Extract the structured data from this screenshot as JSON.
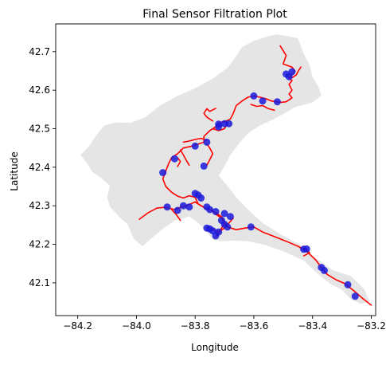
{
  "chart_data": {
    "type": "scatter",
    "title": "Final Sensor Filtration Plot",
    "xlabel": "Longitude",
    "ylabel": "Latitude",
    "xlim": [
      -84.275,
      -83.185
    ],
    "ylim": [
      42.015,
      42.772
    ],
    "xticks": [
      -84.2,
      -84.0,
      -83.8,
      -83.6,
      -83.4,
      -83.2
    ],
    "xtick_labels": [
      "−84.2",
      "−84.0",
      "−83.8",
      "−83.6",
      "−83.4",
      "−83.2"
    ],
    "yticks": [
      42.1,
      42.2,
      42.3,
      42.4,
      42.5,
      42.6,
      42.7
    ],
    "ytick_labels": [
      "42.1",
      "42.2",
      "42.3",
      "42.4",
      "42.5",
      "42.6",
      "42.7"
    ],
    "grid": false,
    "colors": {
      "basin": "#e5e5e5",
      "river": "#ff0000",
      "sensor": "#1a1adc"
    },
    "basin_outline": [
      [
        -83.52,
        42.745
      ],
      [
        -83.45,
        42.735
      ],
      [
        -83.43,
        42.695
      ],
      [
        -83.41,
        42.665
      ],
      [
        -83.4,
        42.635
      ],
      [
        -83.38,
        42.608
      ],
      [
        -83.37,
        42.586
      ],
      [
        -83.4,
        42.568
      ],
      [
        -83.46,
        42.556
      ],
      [
        -83.5,
        42.538
      ],
      [
        -83.54,
        42.522
      ],
      [
        -83.58,
        42.508
      ],
      [
        -83.62,
        42.488
      ],
      [
        -83.65,
        42.462
      ],
      [
        -83.68,
        42.432
      ],
      [
        -83.7,
        42.402
      ],
      [
        -83.72,
        42.378
      ],
      [
        -83.69,
        42.352
      ],
      [
        -83.66,
        42.322
      ],
      [
        -83.62,
        42.29
      ],
      [
        -83.57,
        42.255
      ],
      [
        -83.5,
        42.222
      ],
      [
        -83.44,
        42.198
      ],
      [
        -83.39,
        42.165
      ],
      [
        -83.33,
        42.132
      ],
      [
        -83.27,
        42.118
      ],
      [
        -83.225,
        42.085
      ],
      [
        -83.205,
        42.052
      ],
      [
        -83.235,
        42.045
      ],
      [
        -83.27,
        42.058
      ],
      [
        -83.3,
        42.082
      ],
      [
        -83.34,
        42.098
      ],
      [
        -83.38,
        42.122
      ],
      [
        -83.43,
        42.158
      ],
      [
        -83.5,
        42.182
      ],
      [
        -83.56,
        42.198
      ],
      [
        -83.62,
        42.208
      ],
      [
        -83.67,
        42.21
      ],
      [
        -83.71,
        42.208
      ],
      [
        -83.74,
        42.212
      ],
      [
        -83.76,
        42.232
      ],
      [
        -83.79,
        42.256
      ],
      [
        -83.82,
        42.272
      ],
      [
        -83.87,
        42.262
      ],
      [
        -83.91,
        42.24
      ],
      [
        -83.95,
        42.215
      ],
      [
        -83.98,
        42.195
      ],
      [
        -84.01,
        42.215
      ],
      [
        -84.03,
        42.252
      ],
      [
        -84.06,
        42.272
      ],
      [
        -84.09,
        42.298
      ],
      [
        -84.1,
        42.322
      ],
      [
        -84.09,
        42.352
      ],
      [
        -84.12,
        42.372
      ],
      [
        -84.15,
        42.388
      ],
      [
        -84.17,
        42.412
      ],
      [
        -84.19,
        42.432
      ],
      [
        -84.16,
        42.456
      ],
      [
        -84.14,
        42.48
      ],
      [
        -84.11,
        42.508
      ],
      [
        -84.07,
        42.516
      ],
      [
        -84.02,
        42.515
      ],
      [
        -83.97,
        42.53
      ],
      [
        -83.92,
        42.56
      ],
      [
        -83.86,
        42.585
      ],
      [
        -83.8,
        42.605
      ],
      [
        -83.74,
        42.63
      ],
      [
        -83.69,
        42.658
      ],
      [
        -83.66,
        42.688
      ],
      [
        -83.64,
        42.712
      ],
      [
        -83.6,
        42.728
      ],
      [
        -83.56,
        42.738
      ]
    ],
    "rivers": [
      [
        [
          -83.51,
          42.715
        ],
        [
          -83.49,
          42.69
        ],
        [
          -83.5,
          42.668
        ],
        [
          -83.47,
          42.66
        ],
        [
          -83.46,
          42.65
        ],
        [
          -83.47,
          42.64
        ],
        [
          -83.48,
          42.632
        ],
        [
          -83.47,
          42.625
        ],
        [
          -83.48,
          42.615
        ],
        [
          -83.47,
          42.6
        ],
        [
          -83.48,
          42.59
        ],
        [
          -83.47,
          42.58
        ],
        [
          -83.49,
          42.57
        ],
        [
          -83.51,
          42.568
        ],
        [
          -83.54,
          42.572
        ],
        [
          -83.56,
          42.578
        ],
        [
          -83.58,
          42.582
        ],
        [
          -83.6,
          42.585
        ],
        [
          -83.62,
          42.582
        ],
        [
          -83.64,
          42.572
        ],
        [
          -83.66,
          42.56
        ],
        [
          -83.67,
          42.54
        ],
        [
          -83.68,
          42.525
        ],
        [
          -83.7,
          42.518
        ],
        [
          -83.72,
          42.515
        ],
        [
          -83.73,
          42.505
        ],
        [
          -83.75,
          42.495
        ],
        [
          -83.77,
          42.48
        ],
        [
          -83.77,
          42.465
        ],
        [
          -83.79,
          42.46
        ],
        [
          -83.81,
          42.455
        ],
        [
          -83.84,
          42.45
        ],
        [
          -83.86,
          42.435
        ],
        [
          -83.88,
          42.425
        ],
        [
          -83.89,
          42.41
        ],
        [
          -83.9,
          42.39
        ],
        [
          -83.91,
          42.37
        ],
        [
          -83.9,
          42.35
        ],
        [
          -83.88,
          42.335
        ],
        [
          -83.86,
          42.325
        ],
        [
          -83.84,
          42.32
        ],
        [
          -83.82,
          42.326
        ],
        [
          -83.8,
          42.322
        ],
        [
          -83.79,
          42.305
        ],
        [
          -83.77,
          42.296
        ],
        [
          -83.75,
          42.29
        ],
        [
          -83.73,
          42.282
        ],
        [
          -83.71,
          42.272
        ],
        [
          -83.7,
          42.258
        ],
        [
          -83.69,
          42.245
        ],
        [
          -83.66,
          42.238
        ],
        [
          -83.63,
          42.242
        ],
        [
          -83.6,
          42.245
        ],
        [
          -83.57,
          42.232
        ],
        [
          -83.53,
          42.22
        ],
        [
          -83.49,
          42.208
        ],
        [
          -83.45,
          42.195
        ],
        [
          -83.42,
          42.182
        ],
        [
          -83.39,
          42.16
        ],
        [
          -83.37,
          42.14
        ],
        [
          -83.35,
          42.122
        ],
        [
          -83.32,
          42.108
        ],
        [
          -83.29,
          42.098
        ],
        [
          -83.26,
          42.08
        ],
        [
          -83.23,
          42.06
        ],
        [
          -83.2,
          42.042
        ]
      ],
      [
        [
          -83.44,
          42.66
        ],
        [
          -83.45,
          42.648
        ],
        [
          -83.455,
          42.64
        ],
        [
          -83.47,
          42.632
        ]
      ],
      [
        [
          -83.53,
          42.548
        ],
        [
          -83.55,
          42.552
        ],
        [
          -83.57,
          42.56
        ],
        [
          -83.59,
          42.558
        ],
        [
          -83.61,
          42.563
        ]
      ],
      [
        [
          -83.73,
          42.553
        ],
        [
          -83.75,
          42.545
        ],
        [
          -83.76,
          42.552
        ],
        [
          -83.77,
          42.54
        ],
        [
          -83.76,
          42.53
        ],
        [
          -83.74,
          42.52
        ]
      ],
      [
        [
          -83.69,
          42.515
        ],
        [
          -83.7,
          42.5
        ],
        [
          -83.72,
          42.495
        ],
        [
          -83.74,
          42.5
        ]
      ],
      [
        [
          -83.76,
          42.47
        ],
        [
          -83.78,
          42.475
        ],
        [
          -83.8,
          42.472
        ],
        [
          -83.82,
          42.468
        ],
        [
          -83.84,
          42.465
        ]
      ],
      [
        [
          -83.85,
          42.445
        ],
        [
          -83.84,
          42.432
        ],
        [
          -83.83,
          42.418
        ],
        [
          -83.82,
          42.405
        ]
      ],
      [
        [
          -83.86,
          42.425
        ],
        [
          -83.85,
          42.415
        ],
        [
          -83.86,
          42.402
        ]
      ],
      [
        [
          -83.76,
          42.405
        ],
        [
          -83.75,
          42.42
        ],
        [
          -83.74,
          42.435
        ],
        [
          -83.75,
          42.45
        ],
        [
          -83.76,
          42.46
        ]
      ],
      [
        [
          -83.99,
          42.265
        ],
        [
          -83.96,
          42.282
        ],
        [
          -83.93,
          42.294
        ],
        [
          -83.9,
          42.296
        ],
        [
          -83.87,
          42.29
        ],
        [
          -83.85,
          42.296
        ],
        [
          -83.83,
          42.3
        ],
        [
          -83.8,
          42.31
        ],
        [
          -83.78,
          42.3
        ],
        [
          -83.76,
          42.292
        ]
      ],
      [
        [
          -83.88,
          42.29
        ],
        [
          -83.865,
          42.278
        ],
        [
          -83.85,
          42.262
        ]
      ],
      [
        [
          -83.73,
          42.278
        ],
        [
          -83.71,
          42.268
        ],
        [
          -83.7,
          42.255
        ],
        [
          -83.71,
          42.242
        ],
        [
          -83.72,
          42.23
        ],
        [
          -83.73,
          42.22
        ]
      ],
      [
        [
          -83.76,
          42.245
        ],
        [
          -83.74,
          42.24
        ],
        [
          -83.72,
          42.232
        ],
        [
          -83.7,
          42.242
        ],
        [
          -83.685,
          42.255
        ],
        [
          -83.67,
          42.268
        ]
      ],
      [
        [
          -83.43,
          42.195
        ],
        [
          -83.41,
          42.178
        ],
        [
          -83.43,
          42.17
        ]
      ]
    ],
    "sensors": [
      {
        "x": -83.49,
        "y": 42.642
      },
      {
        "x": -83.47,
        "y": 42.648
      },
      {
        "x": -83.48,
        "y": 42.635
      },
      {
        "x": -83.52,
        "y": 42.57
      },
      {
        "x": -83.57,
        "y": 42.572
      },
      {
        "x": -83.6,
        "y": 42.585
      },
      {
        "x": -83.72,
        "y": 42.512
      },
      {
        "x": -83.7,
        "y": 42.513
      },
      {
        "x": -83.685,
        "y": 42.513
      },
      {
        "x": -83.72,
        "y": 42.505
      },
      {
        "x": -83.76,
        "y": 42.465
      },
      {
        "x": -83.8,
        "y": 42.455
      },
      {
        "x": -83.77,
        "y": 42.403
      },
      {
        "x": -83.87,
        "y": 42.422
      },
      {
        "x": -83.91,
        "y": 42.386
      },
      {
        "x": -83.8,
        "y": 42.332
      },
      {
        "x": -83.79,
        "y": 42.328
      },
      {
        "x": -83.78,
        "y": 42.32
      },
      {
        "x": -83.84,
        "y": 42.3
      },
      {
        "x": -83.86,
        "y": 42.288
      },
      {
        "x": -83.895,
        "y": 42.297
      },
      {
        "x": -83.82,
        "y": 42.297
      },
      {
        "x": -83.76,
        "y": 42.297
      },
      {
        "x": -83.75,
        "y": 42.29
      },
      {
        "x": -83.73,
        "y": 42.285
      },
      {
        "x": -83.7,
        "y": 42.28
      },
      {
        "x": -83.68,
        "y": 42.272
      },
      {
        "x": -83.71,
        "y": 42.262
      },
      {
        "x": -83.7,
        "y": 42.252
      },
      {
        "x": -83.69,
        "y": 42.245
      },
      {
        "x": -83.76,
        "y": 42.242
      },
      {
        "x": -83.75,
        "y": 42.24
      },
      {
        "x": -83.74,
        "y": 42.235
      },
      {
        "x": -83.72,
        "y": 42.232
      },
      {
        "x": -83.73,
        "y": 42.222
      },
      {
        "x": -83.61,
        "y": 42.245
      },
      {
        "x": -83.43,
        "y": 42.187
      },
      {
        "x": -83.42,
        "y": 42.188
      },
      {
        "x": -83.37,
        "y": 42.14
      },
      {
        "x": -83.36,
        "y": 42.132
      },
      {
        "x": -83.28,
        "y": 42.095
      },
      {
        "x": -83.255,
        "y": 42.065
      }
    ]
  }
}
